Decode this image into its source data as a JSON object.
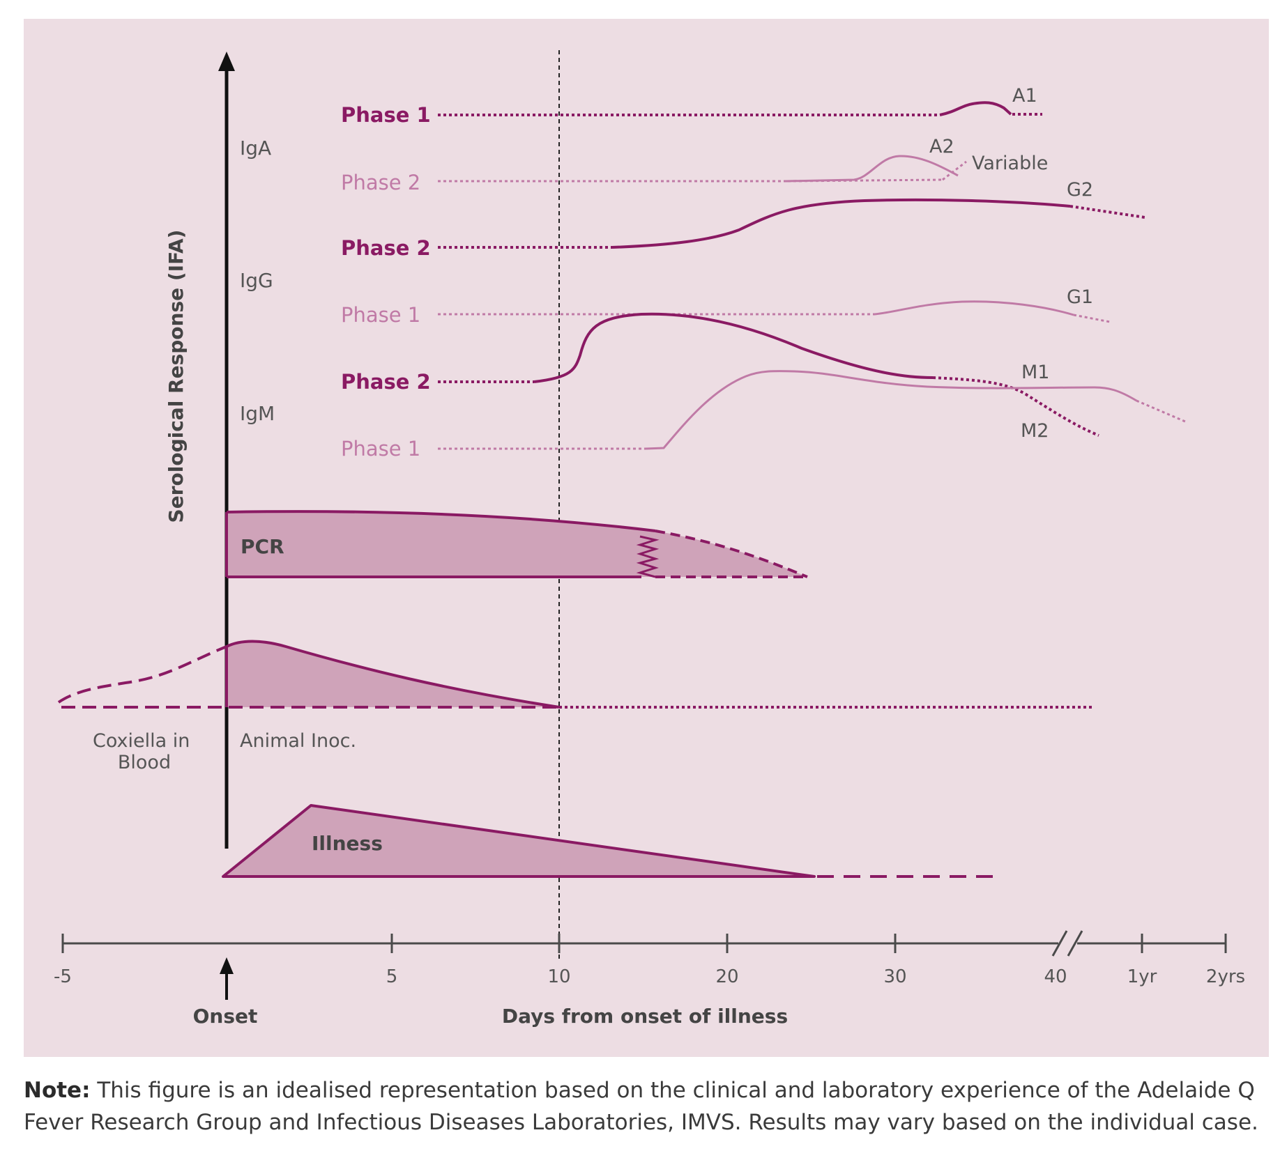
{
  "colors": {
    "panel": "#eddde3",
    "dark": "#8a1a63",
    "light": "#c07aa6",
    "fill": "#cfa3b9",
    "axis": "#4a4a4a",
    "text_grey": "#555555",
    "black": "#111111"
  },
  "y_axis_label": "Serological Response (IFA)",
  "classes": {
    "iga": "IgA",
    "igg": "IgG",
    "igm": "IgM"
  },
  "phases": {
    "iga_p1": "Phase 1",
    "iga_p2": "Phase 2",
    "igg_p2": "Phase 2",
    "igg_p1": "Phase 1",
    "igm_p2": "Phase 2",
    "igm_p1": "Phase 1"
  },
  "curve_labels": {
    "a1": "A1",
    "a2": "A2",
    "variable": "Variable",
    "g2": "G2",
    "g1": "G1",
    "m1": "M1",
    "m2": "M2"
  },
  "pcr_label": "PCR",
  "blood_label": "Coxiella in Blood",
  "blood_label_line1": "Coxiella in",
  "blood_label_line2": "Blood",
  "animal_label": "Animal Inoc.",
  "illness_label": "Illness",
  "x_axis": {
    "ticks": [
      "-5",
      "5",
      "10",
      "20",
      "30",
      "40",
      "1yr",
      "2yrs"
    ],
    "onset_label": "Onset",
    "title": "Days from onset of illness"
  },
  "note": {
    "bold": "Note:",
    "text": " This figure is an idealised representation based on the clinical and laboratory experience of the Adelaide Q Fever Research Group and Infectious Diseases Laboratories, IMVS. Results may vary based on the individual case."
  }
}
